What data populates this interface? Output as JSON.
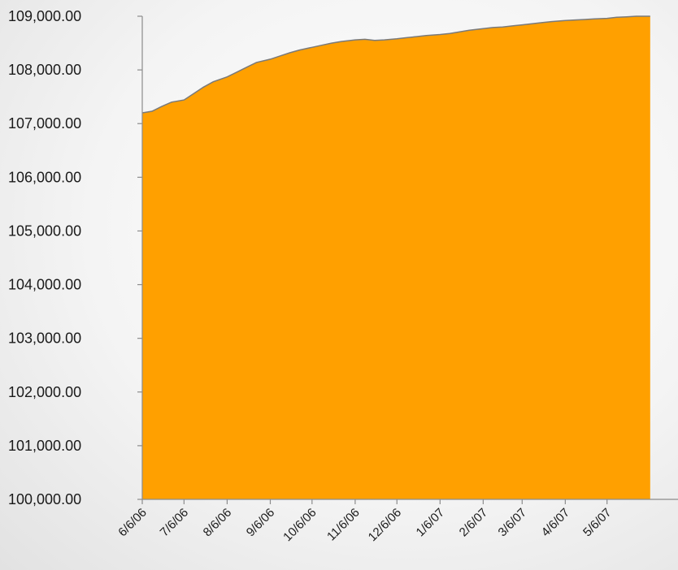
{
  "chart_data": {
    "type": "area",
    "title": "",
    "xlabel": "",
    "ylabel": "",
    "ylim": [
      100000,
      109000
    ],
    "yticks": [
      "100,000.00",
      "101,000.00",
      "102,000.00",
      "103,000.00",
      "104,000.00",
      "105,000.00",
      "106,000.00",
      "107,000.00",
      "108,000.00",
      "109,000.00"
    ],
    "x_ticks": [
      "6/6/06",
      "7/6/06",
      "8/6/06",
      "9/6/06",
      "10/6/06",
      "11/6/06",
      "12/6/06",
      "1/6/07",
      "2/6/07",
      "3/6/07",
      "4/6/07",
      "5/6/07"
    ],
    "fill_color": "#FFA000",
    "line_color": "#7a7a7a",
    "series": [
      {
        "x": [
          "2006-06-06",
          "2006-06-13",
          "2006-06-20",
          "2006-06-27",
          "2006-07-06",
          "2006-07-13",
          "2006-07-20",
          "2006-07-27",
          "2006-08-06",
          "2006-08-13",
          "2006-08-20",
          "2006-08-27",
          "2006-09-06",
          "2006-09-13",
          "2006-09-20",
          "2006-09-27",
          "2006-10-06",
          "2006-10-13",
          "2006-10-20",
          "2006-10-27",
          "2006-11-06",
          "2006-11-13",
          "2006-11-20",
          "2006-11-27",
          "2006-12-06",
          "2006-12-13",
          "2006-12-20",
          "2006-12-27",
          "2007-01-06",
          "2007-01-13",
          "2007-01-20",
          "2007-01-27",
          "2007-02-06",
          "2007-02-13",
          "2007-02-20",
          "2007-02-27",
          "2007-03-06",
          "2007-03-13",
          "2007-03-20",
          "2007-03-27",
          "2007-04-06",
          "2007-04-13",
          "2007-04-20",
          "2007-04-27",
          "2007-05-06",
          "2007-05-13",
          "2007-05-20",
          "2007-05-27",
          "2007-06-06"
        ],
        "values": [
          107200,
          107230,
          107320,
          107400,
          107440,
          107560,
          107680,
          107780,
          107870,
          107960,
          108050,
          108140,
          108200,
          108260,
          108320,
          108370,
          108420,
          108460,
          108500,
          108530,
          108560,
          108570,
          108550,
          108560,
          108580,
          108600,
          108620,
          108640,
          108660,
          108680,
          108710,
          108740,
          108770,
          108790,
          108800,
          108820,
          108840,
          108860,
          108880,
          108900,
          108920,
          108930,
          108940,
          108950,
          108960,
          108980,
          108990,
          109000,
          109000
        ]
      }
    ]
  }
}
